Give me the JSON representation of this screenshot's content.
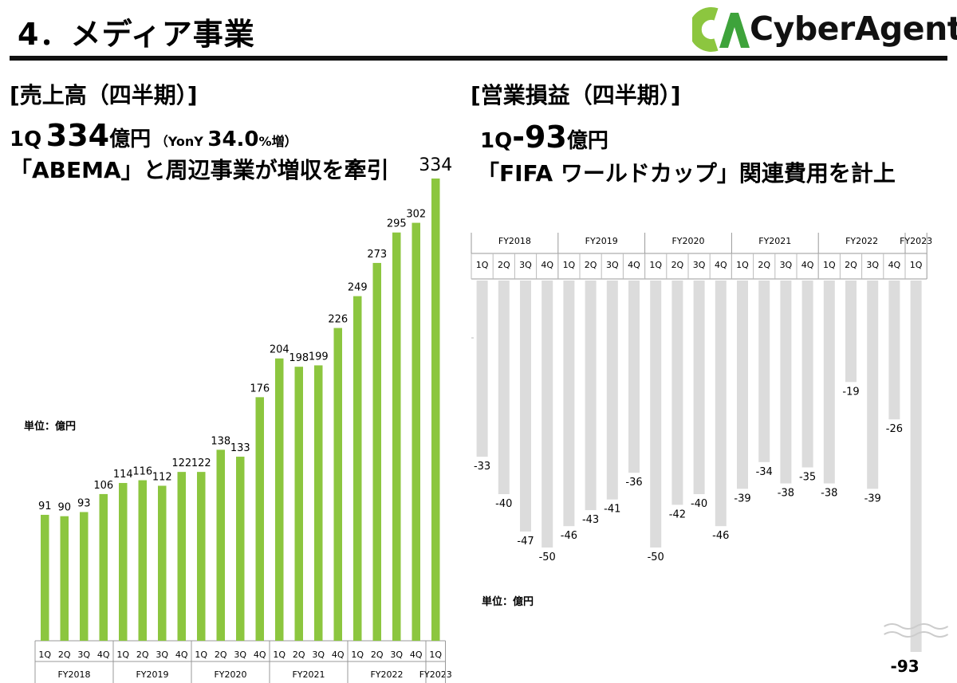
{
  "header": {
    "title": "4．メディア事業",
    "logo_text": "CyberAgent",
    "logo_colors": {
      "c": "#8cc63f",
      "a": "#3ea33b"
    }
  },
  "left": {
    "section_title": "[売上高（四半期）]",
    "headline_q": "1Q",
    "headline_value": "334",
    "headline_unit": "億円",
    "headline_paren_open": "（YonY",
    "headline_pct": "34.0",
    "headline_pct_suffix": "%増）",
    "subline": "「ABEMA」と周辺事業が増収を牽引",
    "unit_label": "単位：億円"
  },
  "right": {
    "section_title": "[営業損益（四半期）]",
    "headline_q": "1Q",
    "headline_value": "-93",
    "headline_unit": "億円",
    "subline": "「FIFA ワールドカップ」関連費用を計上",
    "unit_label": "単位：億円"
  },
  "chart_data": [
    {
      "type": "bar",
      "name": "revenue",
      "color": "#8cc63f",
      "categories": [
        "1Q",
        "2Q",
        "3Q",
        "4Q",
        "1Q",
        "2Q",
        "3Q",
        "4Q",
        "1Q",
        "2Q",
        "3Q",
        "4Q",
        "1Q",
        "2Q",
        "3Q",
        "4Q",
        "1Q",
        "2Q",
        "3Q",
        "4Q",
        "1Q"
      ],
      "values": [
        91,
        90,
        93,
        106,
        114,
        116,
        112,
        122,
        122,
        138,
        133,
        176,
        204,
        198,
        199,
        226,
        249,
        273,
        295,
        302,
        334
      ],
      "value_labels": [
        "91",
        "90",
        "93",
        "106",
        "114",
        "116",
        "112",
        "122",
        "122",
        "138",
        "133",
        "176",
        "204",
        "198",
        "199",
        "226",
        "249",
        "273",
        "295",
        "302",
        "334"
      ],
      "groups": [
        {
          "label": "FY2018",
          "count": 4
        },
        {
          "label": "FY2019",
          "count": 4
        },
        {
          "label": "FY2020",
          "count": 4
        },
        {
          "label": "FY2021",
          "count": 4
        },
        {
          "label": "FY2022",
          "count": 4
        },
        {
          "label": "FY2023",
          "count": 1
        }
      ],
      "ylim": [
        0,
        334
      ]
    },
    {
      "type": "bar",
      "name": "operating_profit",
      "color": "#dcdcdc",
      "categories": [
        "1Q",
        "2Q",
        "3Q",
        "4Q",
        "1Q",
        "2Q",
        "3Q",
        "4Q",
        "1Q",
        "2Q",
        "3Q",
        "4Q",
        "1Q",
        "2Q",
        "3Q",
        "4Q",
        "1Q",
        "2Q",
        "3Q",
        "4Q",
        "1Q"
      ],
      "values": [
        -33,
        -40,
        -47,
        -50,
        -46,
        -43,
        -41,
        -36,
        -50,
        -42,
        -40,
        -46,
        -39,
        -34,
        -38,
        -35,
        -38,
        -19,
        -39,
        -26,
        -93
      ],
      "value_labels": [
        "-33",
        "-40",
        "-47",
        "-50",
        "-46",
        "-43",
        "-41",
        "-36",
        "-50",
        "-42",
        "-40",
        "-46",
        "-39",
        "-34",
        "-38",
        "-35",
        "-38",
        "-19",
        "-39",
        "-26",
        "-93"
      ],
      "groups": [
        {
          "label": "FY2018",
          "count": 4
        },
        {
          "label": "FY2019",
          "count": 4
        },
        {
          "label": "FY2020",
          "count": 4
        },
        {
          "label": "FY2021",
          "count": 4
        },
        {
          "label": "FY2022",
          "count": 4
        },
        {
          "label": "FY2023",
          "count": 1
        }
      ],
      "axis_break": true
    }
  ]
}
